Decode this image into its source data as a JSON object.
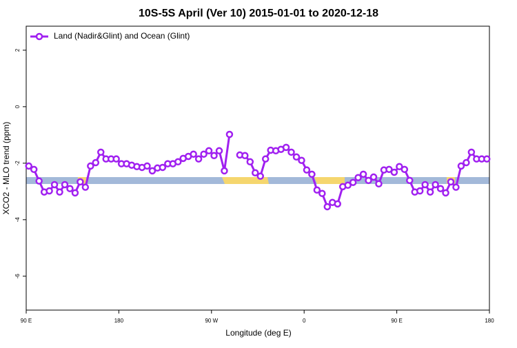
{
  "chart_data": {
    "type": "line",
    "title": "10S-5S April (Ver 10)   2015-01-01 to 2020-12-18",
    "xlabel": "Longitude (deg E)",
    "ylabel": "XCO2 - MLO trend (ppm)",
    "xlim": [
      90,
      540
    ],
    "xticks": [
      {
        "value": 90,
        "label": "90 E"
      },
      180,
      {
        "value": 270,
        "label": "90 W"
      },
      {
        "value": 360,
        "label": "0"
      },
      {
        "value": 450,
        "label": "90 E"
      },
      {
        "value": 540,
        "label": "180"
      }
    ],
    "ylim": [
      -7.2,
      2.85
    ],
    "yticks": [
      -6,
      -4,
      -2,
      0,
      2
    ],
    "legend": "upper left",
    "x": [
      92.5,
      97.5,
      102.5,
      107.5,
      112.5,
      117.5,
      122.5,
      127.5,
      132.5,
      137.5,
      142.5,
      147.5,
      152.5,
      157.5,
      162.5,
      167.5,
      172.5,
      177.5,
      182.5,
      187.5,
      192.5,
      197.5,
      202.5,
      207.5,
      212.5,
      217.5,
      222.5,
      227.5,
      232.5,
      237.5,
      242.5,
      247.5,
      252.5,
      257.5,
      262.5,
      267.5,
      272.5,
      277.5,
      282.5,
      287.5,
      292.5,
      297.5,
      302.5,
      307.5,
      312.5,
      317.5,
      322.5,
      327.5,
      332.5,
      337.5,
      342.5,
      347.5,
      352.5,
      357.5,
      362.5,
      367.5,
      372.5,
      377.5,
      382.5,
      387.5,
      392.5,
      397.5,
      402.5,
      407.5,
      412.5,
      417.5,
      422.5,
      427.5,
      432.5,
      437.5,
      442.5,
      447.5,
      452.5,
      457.5,
      462.5,
      467.5,
      472.5,
      477.5,
      482.5,
      487.5,
      492.5,
      497.5,
      502.5,
      507.5,
      512.5,
      517.5,
      522.5,
      527.5,
      532.5,
      537.5
    ],
    "series": [
      {
        "name": "Land (Nadir&Glint) and Ocean (Glint)",
        "color": "#a020f0",
        "values": [
          -2.1,
          -2.22,
          -2.63,
          -3.02,
          -2.98,
          -2.76,
          -3.02,
          -2.76,
          -2.9,
          -3.05,
          -2.66,
          -2.85,
          -2.1,
          -1.98,
          -1.61,
          -1.85,
          -1.85,
          -1.85,
          -2.02,
          -2.02,
          -2.07,
          -2.12,
          -2.15,
          -2.1,
          -2.27,
          -2.17,
          -2.15,
          -2.02,
          -2.02,
          -1.95,
          -1.83,
          -1.76,
          -1.68,
          -1.85,
          -1.68,
          -1.56,
          -1.73,
          -1.56,
          -2.27,
          -0.98,
          null,
          -1.71,
          -1.73,
          -1.95,
          -2.34,
          -2.46,
          -1.85,
          -1.54,
          -1.56,
          -1.51,
          -1.44,
          -1.61,
          -1.78,
          -1.9,
          -2.24,
          -2.39,
          -2.95,
          -3.07,
          -3.54,
          -3.39,
          -3.44,
          -2.83,
          -2.78,
          -2.68,
          -2.51,
          -2.39,
          -2.61,
          -2.49,
          -2.73,
          -2.24,
          -2.22,
          -2.32,
          -2.12,
          -2.22,
          -2.61,
          -3.02,
          -2.98,
          -2.76,
          -3.02,
          -2.76,
          -2.9,
          -3.05,
          -2.66,
          -2.85,
          -2.1,
          -1.98,
          -1.61,
          -1.85,
          -1.85,
          -1.85
        ]
      }
    ]
  }
}
